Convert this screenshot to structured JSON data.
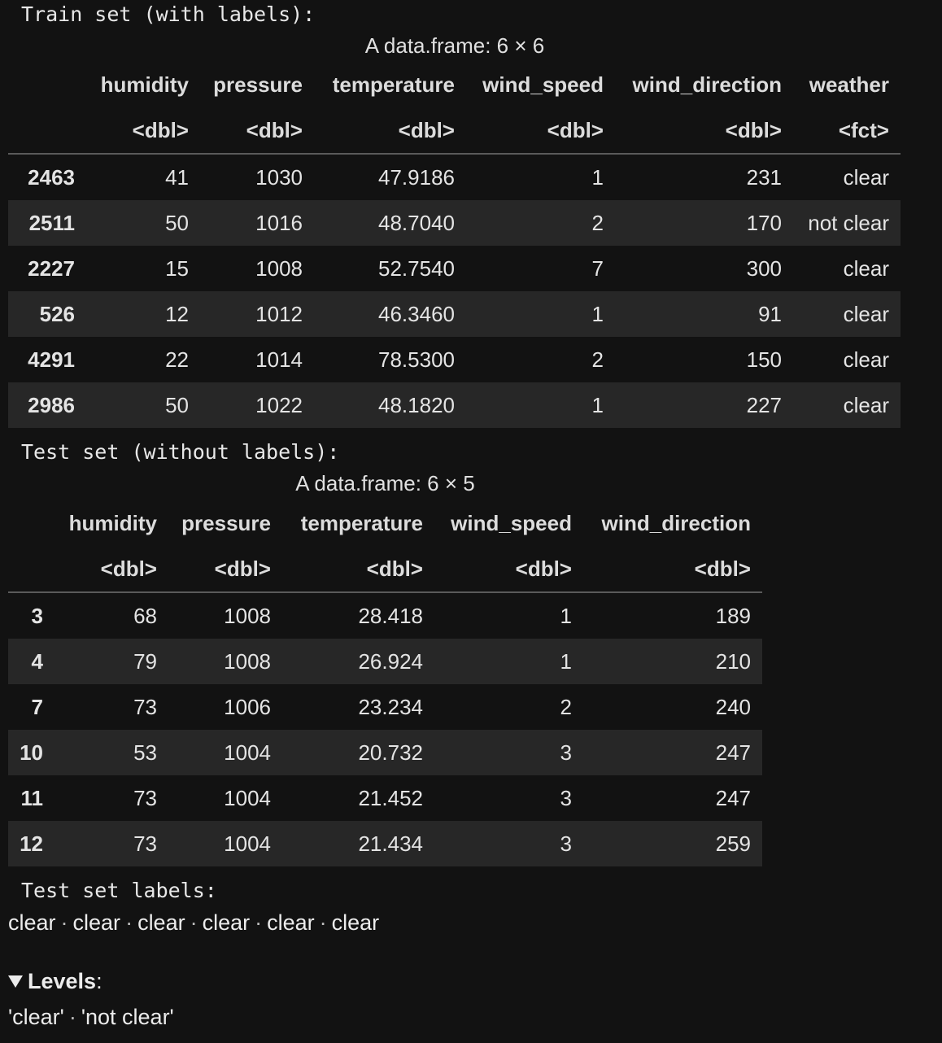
{
  "train": {
    "label": "Train set (with labels):",
    "caption": "A data.frame: 6 × 6",
    "columns": [
      "humidity",
      "pressure",
      "temperature",
      "wind_speed",
      "wind_direction",
      "weather"
    ],
    "types": [
      "<dbl>",
      "<dbl>",
      "<dbl>",
      "<dbl>",
      "<dbl>",
      "<fct>"
    ],
    "rows": [
      {
        "index": "2463",
        "cells": [
          "41",
          "1030",
          "47.9186",
          "1",
          "231",
          "clear"
        ]
      },
      {
        "index": "2511",
        "cells": [
          "50",
          "1016",
          "48.7040",
          "2",
          "170",
          "not clear"
        ]
      },
      {
        "index": "2227",
        "cells": [
          "15",
          "1008",
          "52.7540",
          "7",
          "300",
          "clear"
        ]
      },
      {
        "index": "526",
        "cells": [
          "12",
          "1012",
          "46.3460",
          "1",
          "91",
          "clear"
        ]
      },
      {
        "index": "4291",
        "cells": [
          "22",
          "1014",
          "78.5300",
          "2",
          "150",
          "clear"
        ]
      },
      {
        "index": "2986",
        "cells": [
          "50",
          "1022",
          "48.1820",
          "1",
          "227",
          "clear"
        ]
      }
    ]
  },
  "test": {
    "label": "Test set (without labels):",
    "caption": "A data.frame: 6 × 5",
    "columns": [
      "humidity",
      "pressure",
      "temperature",
      "wind_speed",
      "wind_direction"
    ],
    "types": [
      "<dbl>",
      "<dbl>",
      "<dbl>",
      "<dbl>",
      "<dbl>"
    ],
    "rows": [
      {
        "index": "3",
        "cells": [
          "68",
          "1008",
          "28.418",
          "1",
          "189"
        ]
      },
      {
        "index": "4",
        "cells": [
          "79",
          "1008",
          "26.924",
          "1",
          "210"
        ]
      },
      {
        "index": "7",
        "cells": [
          "73",
          "1006",
          "23.234",
          "2",
          "240"
        ]
      },
      {
        "index": "10",
        "cells": [
          "53",
          "1004",
          "20.732",
          "3",
          "247"
        ]
      },
      {
        "index": "11",
        "cells": [
          "73",
          "1004",
          "21.452",
          "3",
          "247"
        ]
      },
      {
        "index": "12",
        "cells": [
          "73",
          "1004",
          "21.434",
          "3",
          "259"
        ]
      }
    ]
  },
  "test_labels": {
    "label": "Test set labels:",
    "values": [
      "clear",
      "clear",
      "clear",
      "clear",
      "clear",
      "clear"
    ],
    "separator": "·",
    "levels_title": "Levels",
    "levels_colon": ":",
    "levels": [
      "'clear'",
      "'not clear'"
    ]
  }
}
